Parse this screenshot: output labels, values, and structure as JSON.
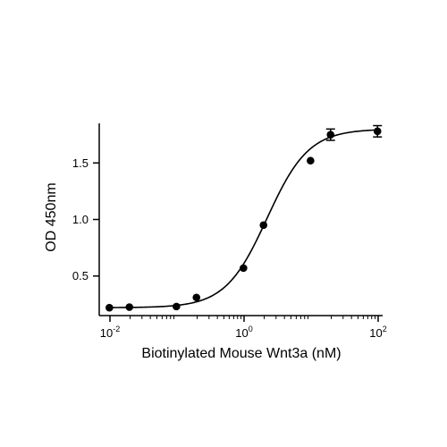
{
  "chart_data": {
    "type": "scatter",
    "xlabel": "Biotinylated Mouse Wnt3a (nM)",
    "ylabel": "OD 450nm",
    "x_scale": "log",
    "xlim": [
      0.01,
      100
    ],
    "ylim": [
      0.15,
      1.85
    ],
    "x_ticks": [
      {
        "value": 0.01,
        "base": "10",
        "exp": "-2"
      },
      {
        "value": 1,
        "base": "10",
        "exp": "0"
      },
      {
        "value": 100,
        "base": "10",
        "exp": "2"
      }
    ],
    "y_ticks": [
      {
        "value": 0.5,
        "label": "0.5"
      },
      {
        "value": 1.0,
        "label": "1.0"
      },
      {
        "value": 1.5,
        "label": "1.5"
      }
    ],
    "grid": false,
    "legend": "none",
    "points": [
      {
        "x": 0.0098,
        "y": 0.22,
        "err": 0.0
      },
      {
        "x": 0.0195,
        "y": 0.225,
        "err": 0.0
      },
      {
        "x": 0.098,
        "y": 0.23,
        "err": 0.0
      },
      {
        "x": 0.195,
        "y": 0.31,
        "err": 0.0
      },
      {
        "x": 0.98,
        "y": 0.57,
        "err": 0.0
      },
      {
        "x": 1.95,
        "y": 0.95,
        "err": 0.0
      },
      {
        "x": 9.8,
        "y": 1.52,
        "err": 0.0
      },
      {
        "x": 19.5,
        "y": 1.75,
        "err": 0.05
      },
      {
        "x": 97.7,
        "y": 1.78,
        "err": 0.05
      }
    ],
    "fit": {
      "model": "4PL",
      "bottom": 0.22,
      "top": 1.8,
      "ec50": 2.2,
      "hill": 1.4
    }
  }
}
